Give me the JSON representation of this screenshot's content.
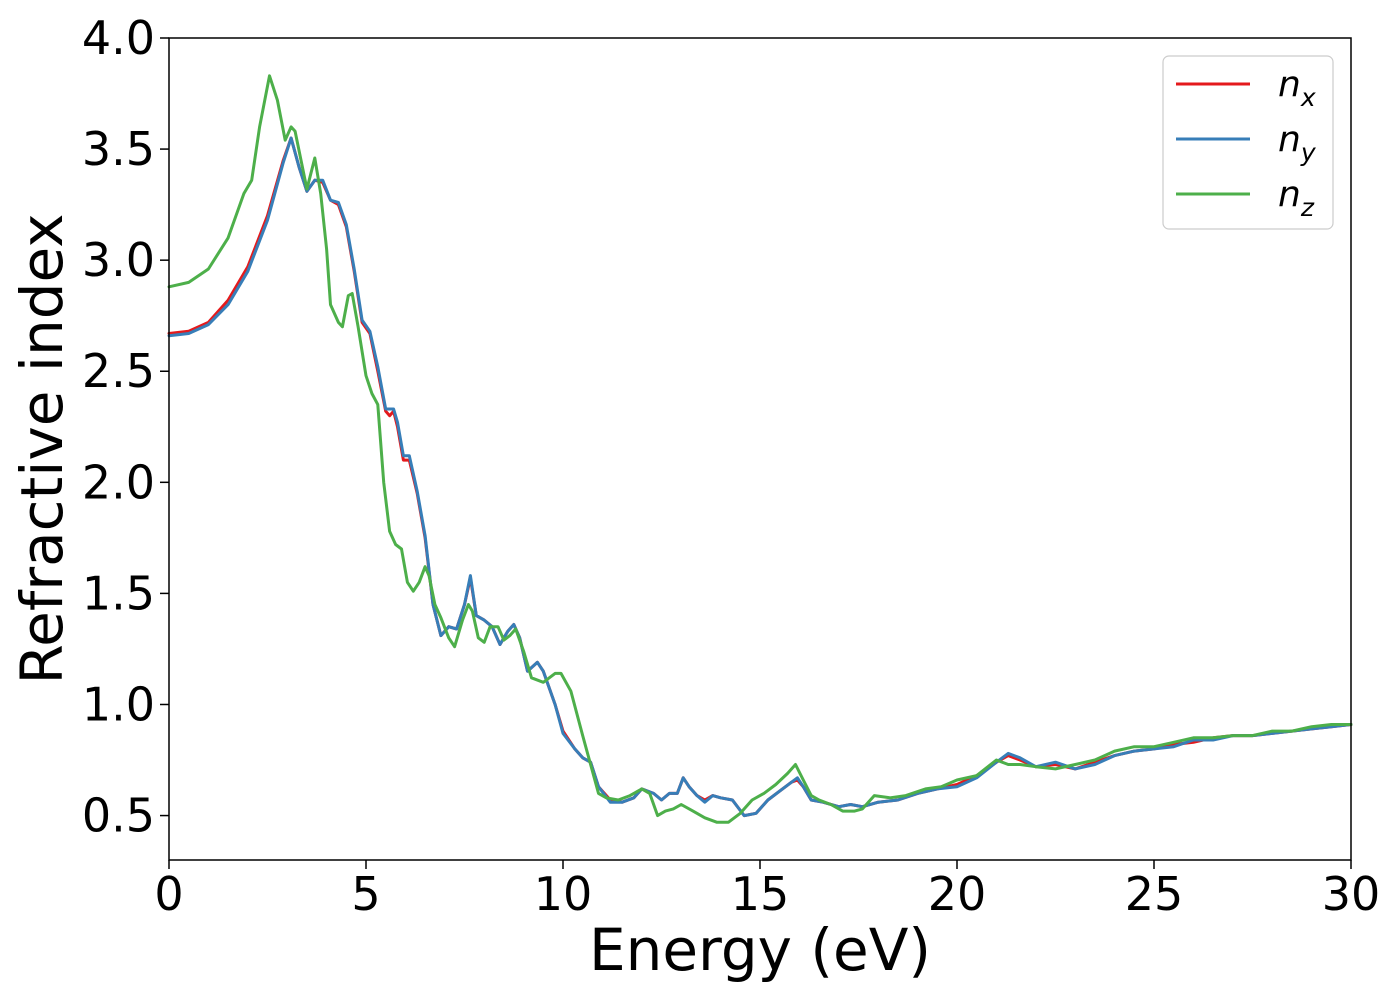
{
  "chart_data": {
    "type": "line",
    "title": "",
    "xlabel": "Energy (eV)",
    "ylabel": "Refractive index",
    "xlim": [
      0,
      30
    ],
    "ylim": [
      0.3,
      4.0
    ],
    "xticks": [
      0,
      5,
      10,
      15,
      20,
      25,
      30
    ],
    "yticks": [
      0.5,
      1.0,
      1.5,
      2.0,
      2.5,
      3.0,
      3.5,
      4.0
    ],
    "xtick_labels": [
      "0",
      "5",
      "10",
      "15",
      "20",
      "25",
      "30"
    ],
    "ytick_labels": [
      "0.5",
      "1.0",
      "1.5",
      "2.0",
      "2.5",
      "3.0",
      "3.5",
      "4.0"
    ],
    "grid": false,
    "legend_position": "top-right",
    "series": [
      {
        "name": "n_x",
        "label_main": "n",
        "label_sub": "x",
        "color": "#e41a1c",
        "points": [
          [
            0,
            2.67
          ],
          [
            0.5,
            2.68
          ],
          [
            1.0,
            2.72
          ],
          [
            1.5,
            2.82
          ],
          [
            2.0,
            2.97
          ],
          [
            2.5,
            3.2
          ],
          [
            2.9,
            3.45
          ],
          [
            3.1,
            3.55
          ],
          [
            3.3,
            3.42
          ],
          [
            3.5,
            3.31
          ],
          [
            3.7,
            3.36
          ],
          [
            3.9,
            3.35
          ],
          [
            4.1,
            3.27
          ],
          [
            4.3,
            3.25
          ],
          [
            4.5,
            3.15
          ],
          [
            4.7,
            2.95
          ],
          [
            4.9,
            2.72
          ],
          [
            5.1,
            2.67
          ],
          [
            5.3,
            2.5
          ],
          [
            5.5,
            2.32
          ],
          [
            5.6,
            2.3
          ],
          [
            5.7,
            2.32
          ],
          [
            5.8,
            2.25
          ],
          [
            5.95,
            2.1
          ],
          [
            6.1,
            2.1
          ],
          [
            6.3,
            1.95
          ],
          [
            6.5,
            1.75
          ],
          [
            6.7,
            1.45
          ],
          [
            6.9,
            1.31
          ],
          [
            7.1,
            1.35
          ],
          [
            7.3,
            1.34
          ],
          [
            7.5,
            1.45
          ],
          [
            7.65,
            1.57
          ],
          [
            7.8,
            1.4
          ],
          [
            8.0,
            1.38
          ],
          [
            8.2,
            1.35
          ],
          [
            8.4,
            1.27
          ],
          [
            8.6,
            1.33
          ],
          [
            8.75,
            1.36
          ],
          [
            8.9,
            1.3
          ],
          [
            9.1,
            1.15
          ],
          [
            9.35,
            1.19
          ],
          [
            9.5,
            1.15
          ],
          [
            9.8,
            1.0
          ],
          [
            10.0,
            0.88
          ],
          [
            10.3,
            0.8
          ],
          [
            10.5,
            0.76
          ],
          [
            10.7,
            0.74
          ],
          [
            10.9,
            0.63
          ],
          [
            11.2,
            0.57
          ],
          [
            11.5,
            0.56
          ],
          [
            11.8,
            0.58
          ],
          [
            12.0,
            0.62
          ],
          [
            12.3,
            0.6
          ],
          [
            12.5,
            0.57
          ],
          [
            12.7,
            0.6
          ],
          [
            12.9,
            0.6
          ],
          [
            13.05,
            0.67
          ],
          [
            13.2,
            0.63
          ],
          [
            13.4,
            0.59
          ],
          [
            13.6,
            0.57
          ],
          [
            13.8,
            0.59
          ],
          [
            14.0,
            0.58
          ],
          [
            14.3,
            0.57
          ],
          [
            14.6,
            0.5
          ],
          [
            14.9,
            0.51
          ],
          [
            15.2,
            0.57
          ],
          [
            15.5,
            0.61
          ],
          [
            15.8,
            0.65
          ],
          [
            15.95,
            0.66
          ],
          [
            16.1,
            0.63
          ],
          [
            16.3,
            0.57
          ],
          [
            16.6,
            0.56
          ],
          [
            17.0,
            0.54
          ],
          [
            17.3,
            0.55
          ],
          [
            17.6,
            0.54
          ],
          [
            18.0,
            0.56
          ],
          [
            18.5,
            0.57
          ],
          [
            19.0,
            0.6
          ],
          [
            19.5,
            0.62
          ],
          [
            20.0,
            0.64
          ],
          [
            20.5,
            0.68
          ],
          [
            21.0,
            0.74
          ],
          [
            21.3,
            0.77
          ],
          [
            21.6,
            0.75
          ],
          [
            22.0,
            0.72
          ],
          [
            22.5,
            0.73
          ],
          [
            23.0,
            0.71
          ],
          [
            23.5,
            0.74
          ],
          [
            24.0,
            0.77
          ],
          [
            24.5,
            0.79
          ],
          [
            25.0,
            0.8
          ],
          [
            25.5,
            0.82
          ],
          [
            26.0,
            0.83
          ],
          [
            26.5,
            0.85
          ],
          [
            27.0,
            0.86
          ],
          [
            27.5,
            0.86
          ],
          [
            28.0,
            0.87
          ],
          [
            28.5,
            0.88
          ],
          [
            29.0,
            0.89
          ],
          [
            29.5,
            0.9
          ],
          [
            30.0,
            0.91
          ]
        ]
      },
      {
        "name": "n_y",
        "label_main": "n",
        "label_sub": "y",
        "color": "#377eb8",
        "points": [
          [
            0,
            2.66
          ],
          [
            0.5,
            2.67
          ],
          [
            1.0,
            2.71
          ],
          [
            1.5,
            2.8
          ],
          [
            2.0,
            2.95
          ],
          [
            2.5,
            3.18
          ],
          [
            2.9,
            3.44
          ],
          [
            3.1,
            3.55
          ],
          [
            3.3,
            3.42
          ],
          [
            3.5,
            3.31
          ],
          [
            3.7,
            3.36
          ],
          [
            3.9,
            3.36
          ],
          [
            4.1,
            3.27
          ],
          [
            4.3,
            3.26
          ],
          [
            4.5,
            3.16
          ],
          [
            4.7,
            2.96
          ],
          [
            4.9,
            2.73
          ],
          [
            5.1,
            2.68
          ],
          [
            5.3,
            2.52
          ],
          [
            5.5,
            2.33
          ],
          [
            5.6,
            2.33
          ],
          [
            5.7,
            2.33
          ],
          [
            5.8,
            2.27
          ],
          [
            5.95,
            2.12
          ],
          [
            6.1,
            2.12
          ],
          [
            6.3,
            1.96
          ],
          [
            6.5,
            1.76
          ],
          [
            6.7,
            1.45
          ],
          [
            6.9,
            1.31
          ],
          [
            7.1,
            1.35
          ],
          [
            7.3,
            1.34
          ],
          [
            7.5,
            1.45
          ],
          [
            7.65,
            1.58
          ],
          [
            7.8,
            1.4
          ],
          [
            8.0,
            1.38
          ],
          [
            8.2,
            1.35
          ],
          [
            8.4,
            1.27
          ],
          [
            8.6,
            1.33
          ],
          [
            8.75,
            1.36
          ],
          [
            8.9,
            1.3
          ],
          [
            9.1,
            1.15
          ],
          [
            9.35,
            1.19
          ],
          [
            9.5,
            1.15
          ],
          [
            9.8,
            1.0
          ],
          [
            10.0,
            0.87
          ],
          [
            10.3,
            0.8
          ],
          [
            10.5,
            0.76
          ],
          [
            10.7,
            0.74
          ],
          [
            10.9,
            0.63
          ],
          [
            11.2,
            0.56
          ],
          [
            11.5,
            0.56
          ],
          [
            11.8,
            0.58
          ],
          [
            12.0,
            0.62
          ],
          [
            12.3,
            0.6
          ],
          [
            12.5,
            0.57
          ],
          [
            12.7,
            0.6
          ],
          [
            12.9,
            0.6
          ],
          [
            13.05,
            0.67
          ],
          [
            13.2,
            0.63
          ],
          [
            13.4,
            0.59
          ],
          [
            13.6,
            0.56
          ],
          [
            13.8,
            0.59
          ],
          [
            14.0,
            0.58
          ],
          [
            14.3,
            0.57
          ],
          [
            14.6,
            0.5
          ],
          [
            14.9,
            0.51
          ],
          [
            15.2,
            0.57
          ],
          [
            15.5,
            0.61
          ],
          [
            15.8,
            0.65
          ],
          [
            15.95,
            0.67
          ],
          [
            16.1,
            0.63
          ],
          [
            16.3,
            0.57
          ],
          [
            16.6,
            0.56
          ],
          [
            17.0,
            0.54
          ],
          [
            17.3,
            0.55
          ],
          [
            17.6,
            0.54
          ],
          [
            18.0,
            0.56
          ],
          [
            18.5,
            0.57
          ],
          [
            19.0,
            0.6
          ],
          [
            19.5,
            0.62
          ],
          [
            20.0,
            0.63
          ],
          [
            20.5,
            0.67
          ],
          [
            21.0,
            0.74
          ],
          [
            21.3,
            0.78
          ],
          [
            21.6,
            0.76
          ],
          [
            22.0,
            0.72
          ],
          [
            22.5,
            0.74
          ],
          [
            23.0,
            0.71
          ],
          [
            23.5,
            0.73
          ],
          [
            24.0,
            0.77
          ],
          [
            24.5,
            0.79
          ],
          [
            25.0,
            0.8
          ],
          [
            25.5,
            0.81
          ],
          [
            26.0,
            0.84
          ],
          [
            26.5,
            0.84
          ],
          [
            27.0,
            0.86
          ],
          [
            27.5,
            0.86
          ],
          [
            28.0,
            0.87
          ],
          [
            28.5,
            0.88
          ],
          [
            29.0,
            0.89
          ],
          [
            29.5,
            0.9
          ],
          [
            30.0,
            0.91
          ]
        ]
      },
      {
        "name": "n_z",
        "label_main": "n",
        "label_sub": "z",
        "color": "#4daf4a",
        "points": [
          [
            0,
            2.88
          ],
          [
            0.5,
            2.9
          ],
          [
            1.0,
            2.96
          ],
          [
            1.5,
            3.1
          ],
          [
            1.9,
            3.3
          ],
          [
            2.1,
            3.36
          ],
          [
            2.3,
            3.6
          ],
          [
            2.55,
            3.83
          ],
          [
            2.75,
            3.72
          ],
          [
            2.95,
            3.54
          ],
          [
            3.1,
            3.6
          ],
          [
            3.2,
            3.58
          ],
          [
            3.35,
            3.45
          ],
          [
            3.5,
            3.32
          ],
          [
            3.7,
            3.46
          ],
          [
            3.85,
            3.3
          ],
          [
            4.0,
            3.05
          ],
          [
            4.1,
            2.8
          ],
          [
            4.3,
            2.72
          ],
          [
            4.4,
            2.7
          ],
          [
            4.55,
            2.84
          ],
          [
            4.65,
            2.85
          ],
          [
            4.8,
            2.7
          ],
          [
            5.0,
            2.48
          ],
          [
            5.15,
            2.4
          ],
          [
            5.3,
            2.35
          ],
          [
            5.45,
            2.0
          ],
          [
            5.6,
            1.78
          ],
          [
            5.75,
            1.72
          ],
          [
            5.9,
            1.7
          ],
          [
            6.05,
            1.55
          ],
          [
            6.2,
            1.51
          ],
          [
            6.35,
            1.55
          ],
          [
            6.5,
            1.62
          ],
          [
            6.6,
            1.58
          ],
          [
            6.75,
            1.45
          ],
          [
            6.9,
            1.39
          ],
          [
            7.1,
            1.3
          ],
          [
            7.25,
            1.26
          ],
          [
            7.45,
            1.38
          ],
          [
            7.6,
            1.45
          ],
          [
            7.7,
            1.42
          ],
          [
            7.85,
            1.3
          ],
          [
            8.0,
            1.28
          ],
          [
            8.15,
            1.35
          ],
          [
            8.35,
            1.35
          ],
          [
            8.5,
            1.29
          ],
          [
            8.65,
            1.31
          ],
          [
            8.8,
            1.34
          ],
          [
            9.0,
            1.24
          ],
          [
            9.2,
            1.12
          ],
          [
            9.5,
            1.1
          ],
          [
            9.8,
            1.14
          ],
          [
            9.95,
            1.14
          ],
          [
            10.2,
            1.06
          ],
          [
            10.5,
            0.86
          ],
          [
            10.7,
            0.73
          ],
          [
            10.9,
            0.6
          ],
          [
            11.1,
            0.58
          ],
          [
            11.4,
            0.57
          ],
          [
            11.7,
            0.59
          ],
          [
            12.0,
            0.62
          ],
          [
            12.2,
            0.6
          ],
          [
            12.4,
            0.5
          ],
          [
            12.6,
            0.52
          ],
          [
            12.8,
            0.53
          ],
          [
            13.0,
            0.55
          ],
          [
            13.3,
            0.52
          ],
          [
            13.6,
            0.49
          ],
          [
            13.9,
            0.47
          ],
          [
            14.2,
            0.47
          ],
          [
            14.5,
            0.51
          ],
          [
            14.8,
            0.57
          ],
          [
            15.1,
            0.6
          ],
          [
            15.4,
            0.64
          ],
          [
            15.7,
            0.69
          ],
          [
            15.9,
            0.73
          ],
          [
            16.1,
            0.66
          ],
          [
            16.3,
            0.59
          ],
          [
            16.5,
            0.57
          ],
          [
            16.8,
            0.55
          ],
          [
            17.1,
            0.52
          ],
          [
            17.4,
            0.52
          ],
          [
            17.6,
            0.53
          ],
          [
            17.9,
            0.59
          ],
          [
            18.3,
            0.58
          ],
          [
            18.7,
            0.59
          ],
          [
            19.2,
            0.62
          ],
          [
            19.6,
            0.63
          ],
          [
            20.0,
            0.66
          ],
          [
            20.5,
            0.68
          ],
          [
            21.0,
            0.75
          ],
          [
            21.3,
            0.73
          ],
          [
            21.6,
            0.73
          ],
          [
            22.0,
            0.72
          ],
          [
            22.5,
            0.71
          ],
          [
            23.0,
            0.73
          ],
          [
            23.5,
            0.75
          ],
          [
            24.0,
            0.79
          ],
          [
            24.5,
            0.81
          ],
          [
            25.0,
            0.81
          ],
          [
            25.5,
            0.83
          ],
          [
            26.0,
            0.85
          ],
          [
            26.5,
            0.85
          ],
          [
            27.0,
            0.86
          ],
          [
            27.5,
            0.86
          ],
          [
            28.0,
            0.88
          ],
          [
            28.5,
            0.88
          ],
          [
            29.0,
            0.9
          ],
          [
            29.5,
            0.91
          ],
          [
            30.0,
            0.91
          ]
        ]
      }
    ]
  }
}
